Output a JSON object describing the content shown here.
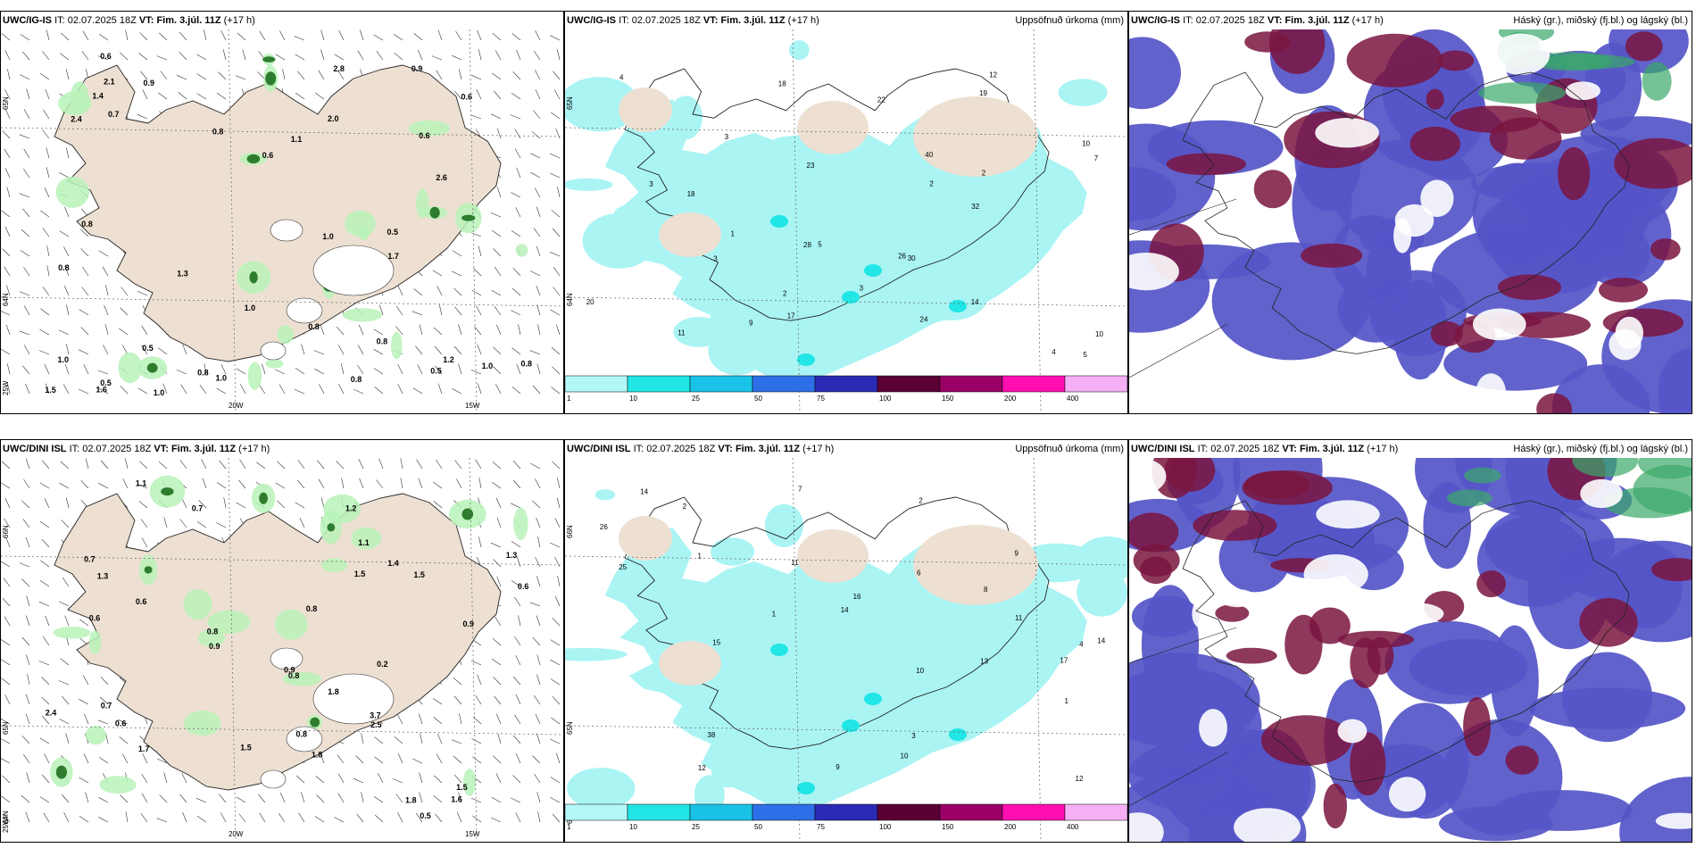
{
  "panels": [
    {
      "id": "p1",
      "model": "UWC/IG-IS",
      "it_label": "IT:",
      "it": "02.07.2025 18Z",
      "vt_label": "VT:",
      "vt": "Fim. 3.júl. 11Z",
      "lead": "(+17 h)",
      "right_title": "",
      "type": "wind",
      "lat_labels": [
        "65N",
        "64N",
        "25W"
      ],
      "lon_labels": [
        "20W",
        "15W"
      ],
      "values": [
        "2.0",
        "0.8",
        "0.9",
        "1.0",
        "0.8",
        "1.0",
        "0.6",
        "0.5",
        "2.4",
        "1.1",
        "0.6",
        "0.9",
        "2.6",
        "0.8",
        "0.5",
        "0.8",
        "0.6",
        "0.7",
        "0.8",
        "1.0",
        "2.8",
        "1.3",
        "1.5",
        "1.2",
        "0.8",
        "1.6",
        "2.1",
        "1.4",
        "0.5",
        "1.0",
        "0.8",
        "0.8",
        "1.0",
        "0.6",
        "1.7",
        "1.0",
        "0.5"
      ]
    },
    {
      "id": "p2",
      "model": "UWC/IG-IS",
      "it_label": "IT:",
      "it": "02.07.2025 18Z",
      "vt_label": "VT:",
      "vt": "Fim. 3.júl. 11Z",
      "lead": "(+17 h)",
      "right_title": "Uppsöfnuð úrkoma (mm)",
      "type": "precip",
      "lat_labels": [
        "65N",
        "64N"
      ],
      "values": [
        "2",
        "4",
        "9",
        "3",
        "3",
        "2",
        "10",
        "7",
        "5",
        "3",
        "19",
        "20",
        "17",
        "18",
        "40",
        "14",
        "30",
        "32",
        "24",
        "18",
        "26",
        "23",
        "12",
        "22",
        "28",
        "11",
        "10",
        "5",
        "4",
        "3",
        "2",
        "1"
      ]
    },
    {
      "id": "p3",
      "model": "UWC/IG-IS",
      "it_label": "IT:",
      "it": "02.07.2025 18Z",
      "vt_label": "VT:",
      "vt": "Fim. 3.júl. 11Z",
      "lead": "(+17 h)",
      "right_title": "Háský (gr.), miðský (fj.bl.) og lágský (bl.)",
      "type": "cloud"
    },
    {
      "id": "p4",
      "model": "UWC/DINI ISL",
      "it_label": "IT:",
      "it": "02.07.2025 18Z",
      "vt_label": "VT:",
      "vt": "Fim. 3.júl. 11Z",
      "lead": "(+17 h)",
      "right_title": "",
      "type": "wind",
      "lat_labels": [
        "66N",
        "65N",
        "64N",
        "25W"
      ],
      "lon_labels": [
        "20W",
        "15W"
      ],
      "values": [
        "1.5",
        "1.8",
        "1.1",
        "0.7",
        "0.7",
        "1.4",
        "0.8",
        "0.9",
        "0.6",
        "0.9",
        "0.6",
        "2.4",
        "1.3",
        "0.8",
        "0.9",
        "1.5",
        "1.8",
        "0.6",
        "0.5",
        "0.2",
        "1.5",
        "3.7",
        "0.8",
        "1.7",
        "2.5",
        "0.8",
        "1.1",
        "0.6",
        "1.3",
        "1.5",
        "0.7",
        "1.8",
        "1.6",
        "1.2"
      ]
    },
    {
      "id": "p5",
      "model": "UWC/DINI ISL",
      "it_label": "IT:",
      "it": "02.07.2025 18Z",
      "vt_label": "VT:",
      "vt": "Fim. 3.júl. 11Z",
      "lead": "(+17 h)",
      "right_title": "Uppsöfnuð úrkoma (mm)",
      "type": "precip",
      "lat_labels": [
        "66N",
        "65N",
        "64N"
      ],
      "values": [
        "2",
        "1",
        "3",
        "6",
        "1",
        "9",
        "10",
        "11",
        "14",
        "16",
        "38",
        "11",
        "10",
        "25",
        "14",
        "15",
        "12",
        "17",
        "13",
        "26",
        "12",
        "14",
        "9",
        "7",
        "8",
        "4",
        "2",
        "1"
      ]
    },
    {
      "id": "p6",
      "model": "UWC/DINI ISL",
      "it_label": "IT:",
      "it": "02.07.2025 18Z",
      "vt_label": "VT:",
      "vt": "Fim. 3.júl. 11Z",
      "lead": "(+17 h)",
      "right_title": "Háský (gr.), miðský (fj.bl.) og lágský (bl.)",
      "type": "cloud"
    }
  ],
  "colorbar": {
    "ticks": [
      "1",
      "10",
      "25",
      "50",
      "75",
      "100",
      "150",
      "200",
      "400"
    ],
    "colors": [
      "#b4f7f7",
      "#22e6e6",
      "#19c2e6",
      "#2d6fe6",
      "#2a2ab5",
      "#5a0035",
      "#9b0066",
      "#ff0fb0",
      "#f5b0f5"
    ]
  },
  "colors": {
    "land": "#ede0d2",
    "sea": "#ffffff",
    "precip": "#aaf4f4",
    "wind_green": "#b8f2b8",
    "low_cloud": "#5555c8",
    "mid_cloud": "#7a1540",
    "high_cloud": "#3aa86a"
  }
}
